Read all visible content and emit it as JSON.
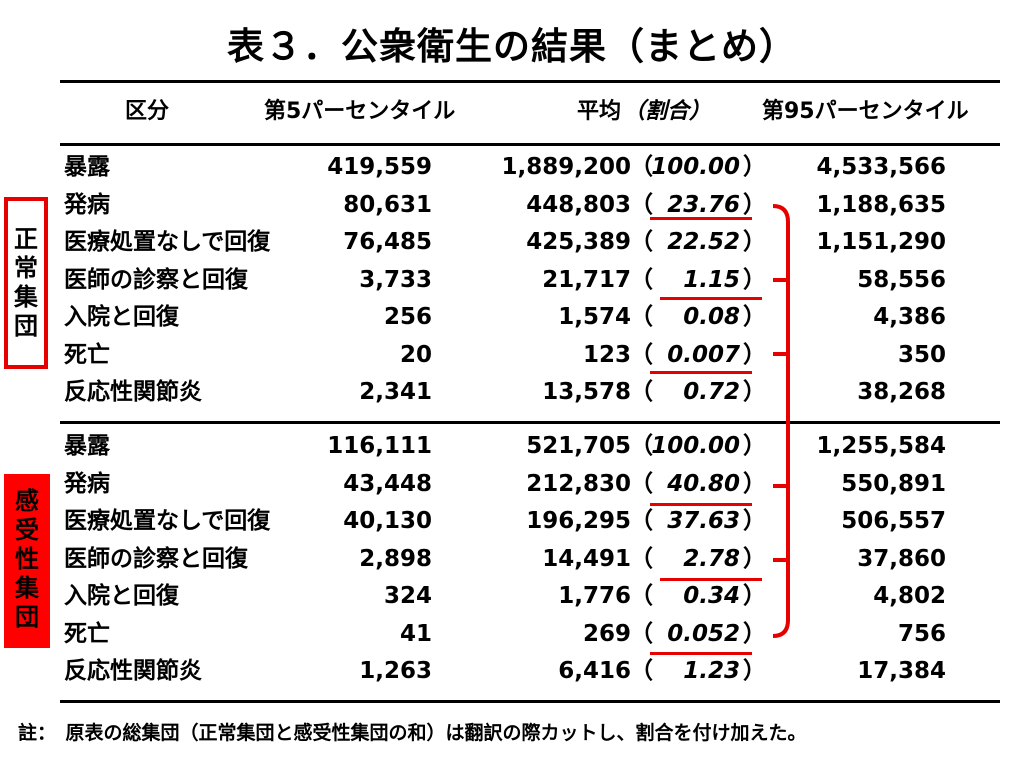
{
  "title": "表３．公衆衛生の結果（まとめ）",
  "headers": {
    "category": "区分",
    "p5": "第5パーセンタイル",
    "mean": "平均",
    "ratio": "（割合）",
    "p95": "第95パーセンタイル"
  },
  "groups": [
    {
      "name": "正常集団",
      "chars": [
        "正",
        "常",
        "集",
        "団"
      ],
      "rows": [
        {
          "label": "暴露",
          "p5": "419,559",
          "mean": "1,889,200",
          "lp": "（",
          "ratio": "100.00",
          "rp": "）",
          "p95": "4,533,566"
        },
        {
          "label": "発病",
          "p5": "80,631",
          "mean": "448,803",
          "lp": "（",
          "ratio": "23.76",
          "rp": "）",
          "p95": "1,188,635"
        },
        {
          "label": "医療処置なしで回復",
          "p5": "76,485",
          "mean": "425,389",
          "lp": "（",
          "ratio": "22.52",
          "rp": "）",
          "p95": "1,151,290"
        },
        {
          "label": "医師の診察と回復",
          "p5": "3,733",
          "mean": "21,717",
          "lp": "（",
          "ratio": "1.15",
          "rp": "）",
          "p95": "58,556"
        },
        {
          "label": "入院と回復",
          "p5": "256",
          "mean": "1,574",
          "lp": "（",
          "ratio": "0.08",
          "rp": "）",
          "p95": "4,386"
        },
        {
          "label": "死亡",
          "p5": "20",
          "mean": "123",
          "lp": "（",
          "ratio": "0.007",
          "rp": "）",
          "p95": "350"
        },
        {
          "label": "反応性関節炎",
          "p5": "2,341",
          "mean": "13,578",
          "lp": "（",
          "ratio": "0.72",
          "rp": "）",
          "p95": "38,268"
        }
      ]
    },
    {
      "name": "感受性集団",
      "chars": [
        "感",
        "受",
        "性",
        "集",
        "団"
      ],
      "rows": [
        {
          "label": "暴露",
          "p5": "116,111",
          "mean": "521,705",
          "lp": "（",
          "ratio": "100.00",
          "rp": "）",
          "p95": "1,255,584"
        },
        {
          "label": "発病",
          "p5": "43,448",
          "mean": "212,830",
          "lp": "（",
          "ratio": "40.80",
          "rp": "）",
          "p95": "550,891"
        },
        {
          "label": "医療処置なしで回復",
          "p5": "40,130",
          "mean": "196,295",
          "lp": "（",
          "ratio": "37.63",
          "rp": "）",
          "p95": "506,557"
        },
        {
          "label": "医師の診察と回復",
          "p5": "2,898",
          "mean": "14,491",
          "lp": "（",
          "ratio": "2.78",
          "rp": "）",
          "p95": "37,860"
        },
        {
          "label": "入院と回復",
          "p5": "324",
          "mean": "1,776",
          "lp": "（",
          "ratio": "0.34",
          "rp": "）",
          "p95": "4,802"
        },
        {
          "label": "死亡",
          "p5": "41",
          "mean": "269",
          "lp": "（",
          "ratio": "0.052",
          "rp": "）",
          "p95": "756"
        },
        {
          "label": "反応性関節炎",
          "p5": "1,263",
          "mean": "6,416",
          "lp": "（",
          "ratio": "1.23",
          "rp": "）",
          "p95": "17,384"
        }
      ]
    }
  ],
  "note": "註：　原表の総集団（正常集団と感受性集団の和）は翻訳の際カットし、割合を付け加えた。",
  "colors": {
    "accent": "#e60000",
    "rule": "#000000"
  }
}
